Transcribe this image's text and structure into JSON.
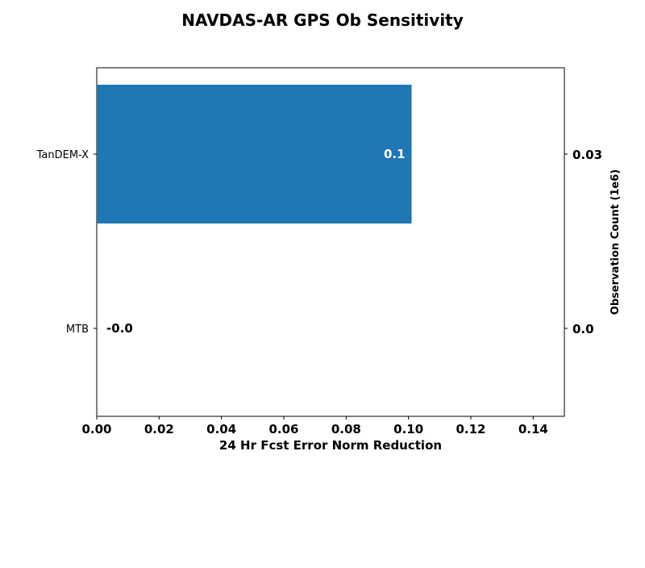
{
  "chart_data": {
    "type": "bar",
    "orientation": "horizontal",
    "title": "NAVDAS-AR GPS Ob Sensitivity",
    "xlabel": "24 Hr Fcst Error Norm Reduction",
    "ylabel_right": "Observation Count (1e6)",
    "categories": [
      "TanDEM-X",
      "MTB"
    ],
    "values": [
      0.101,
      0.0
    ],
    "bar_labels": [
      "0.1",
      "-0.0"
    ],
    "observation_counts": [
      "0.03",
      "0.0"
    ],
    "xlim": [
      0.0,
      0.15
    ],
    "xticks": [
      0.0,
      0.02,
      0.04,
      0.06,
      0.08,
      0.1,
      0.12,
      0.14
    ],
    "xtick_labels": [
      "0.00",
      "0.02",
      "0.04",
      "0.06",
      "0.08",
      "0.10",
      "0.12",
      "0.14"
    ],
    "grid": false,
    "bar_color": "#1f77b4"
  }
}
